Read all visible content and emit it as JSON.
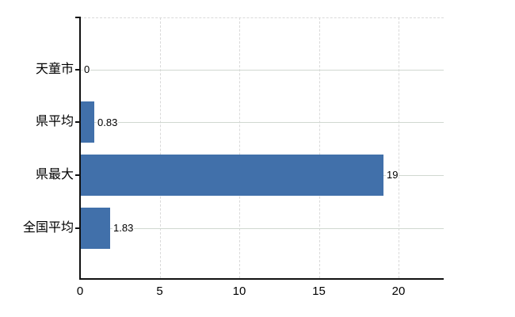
{
  "chart_data": {
    "type": "bar",
    "orientation": "horizontal",
    "title": "",
    "xlabel": "",
    "ylabel": "",
    "categories": [
      "天童市",
      "県平均",
      "県最大",
      "全国平均"
    ],
    "values": [
      0,
      0.83,
      19,
      1.83
    ],
    "value_labels": [
      "0",
      "0.83",
      "19",
      "1.83"
    ],
    "x_ticks": [
      0,
      5,
      10,
      15,
      20
    ],
    "x_tick_labels": [
      "0",
      "5",
      "10",
      "15",
      "20"
    ],
    "xlim": [
      0,
      22.8
    ],
    "grid": true,
    "legend": false,
    "bar_color": "#4170aa",
    "axis_color": "#111111",
    "h_gridline_color": "#d0d8d0",
    "v_gridline_color": "#d9d9d9",
    "background_color": "#ffffff"
  }
}
